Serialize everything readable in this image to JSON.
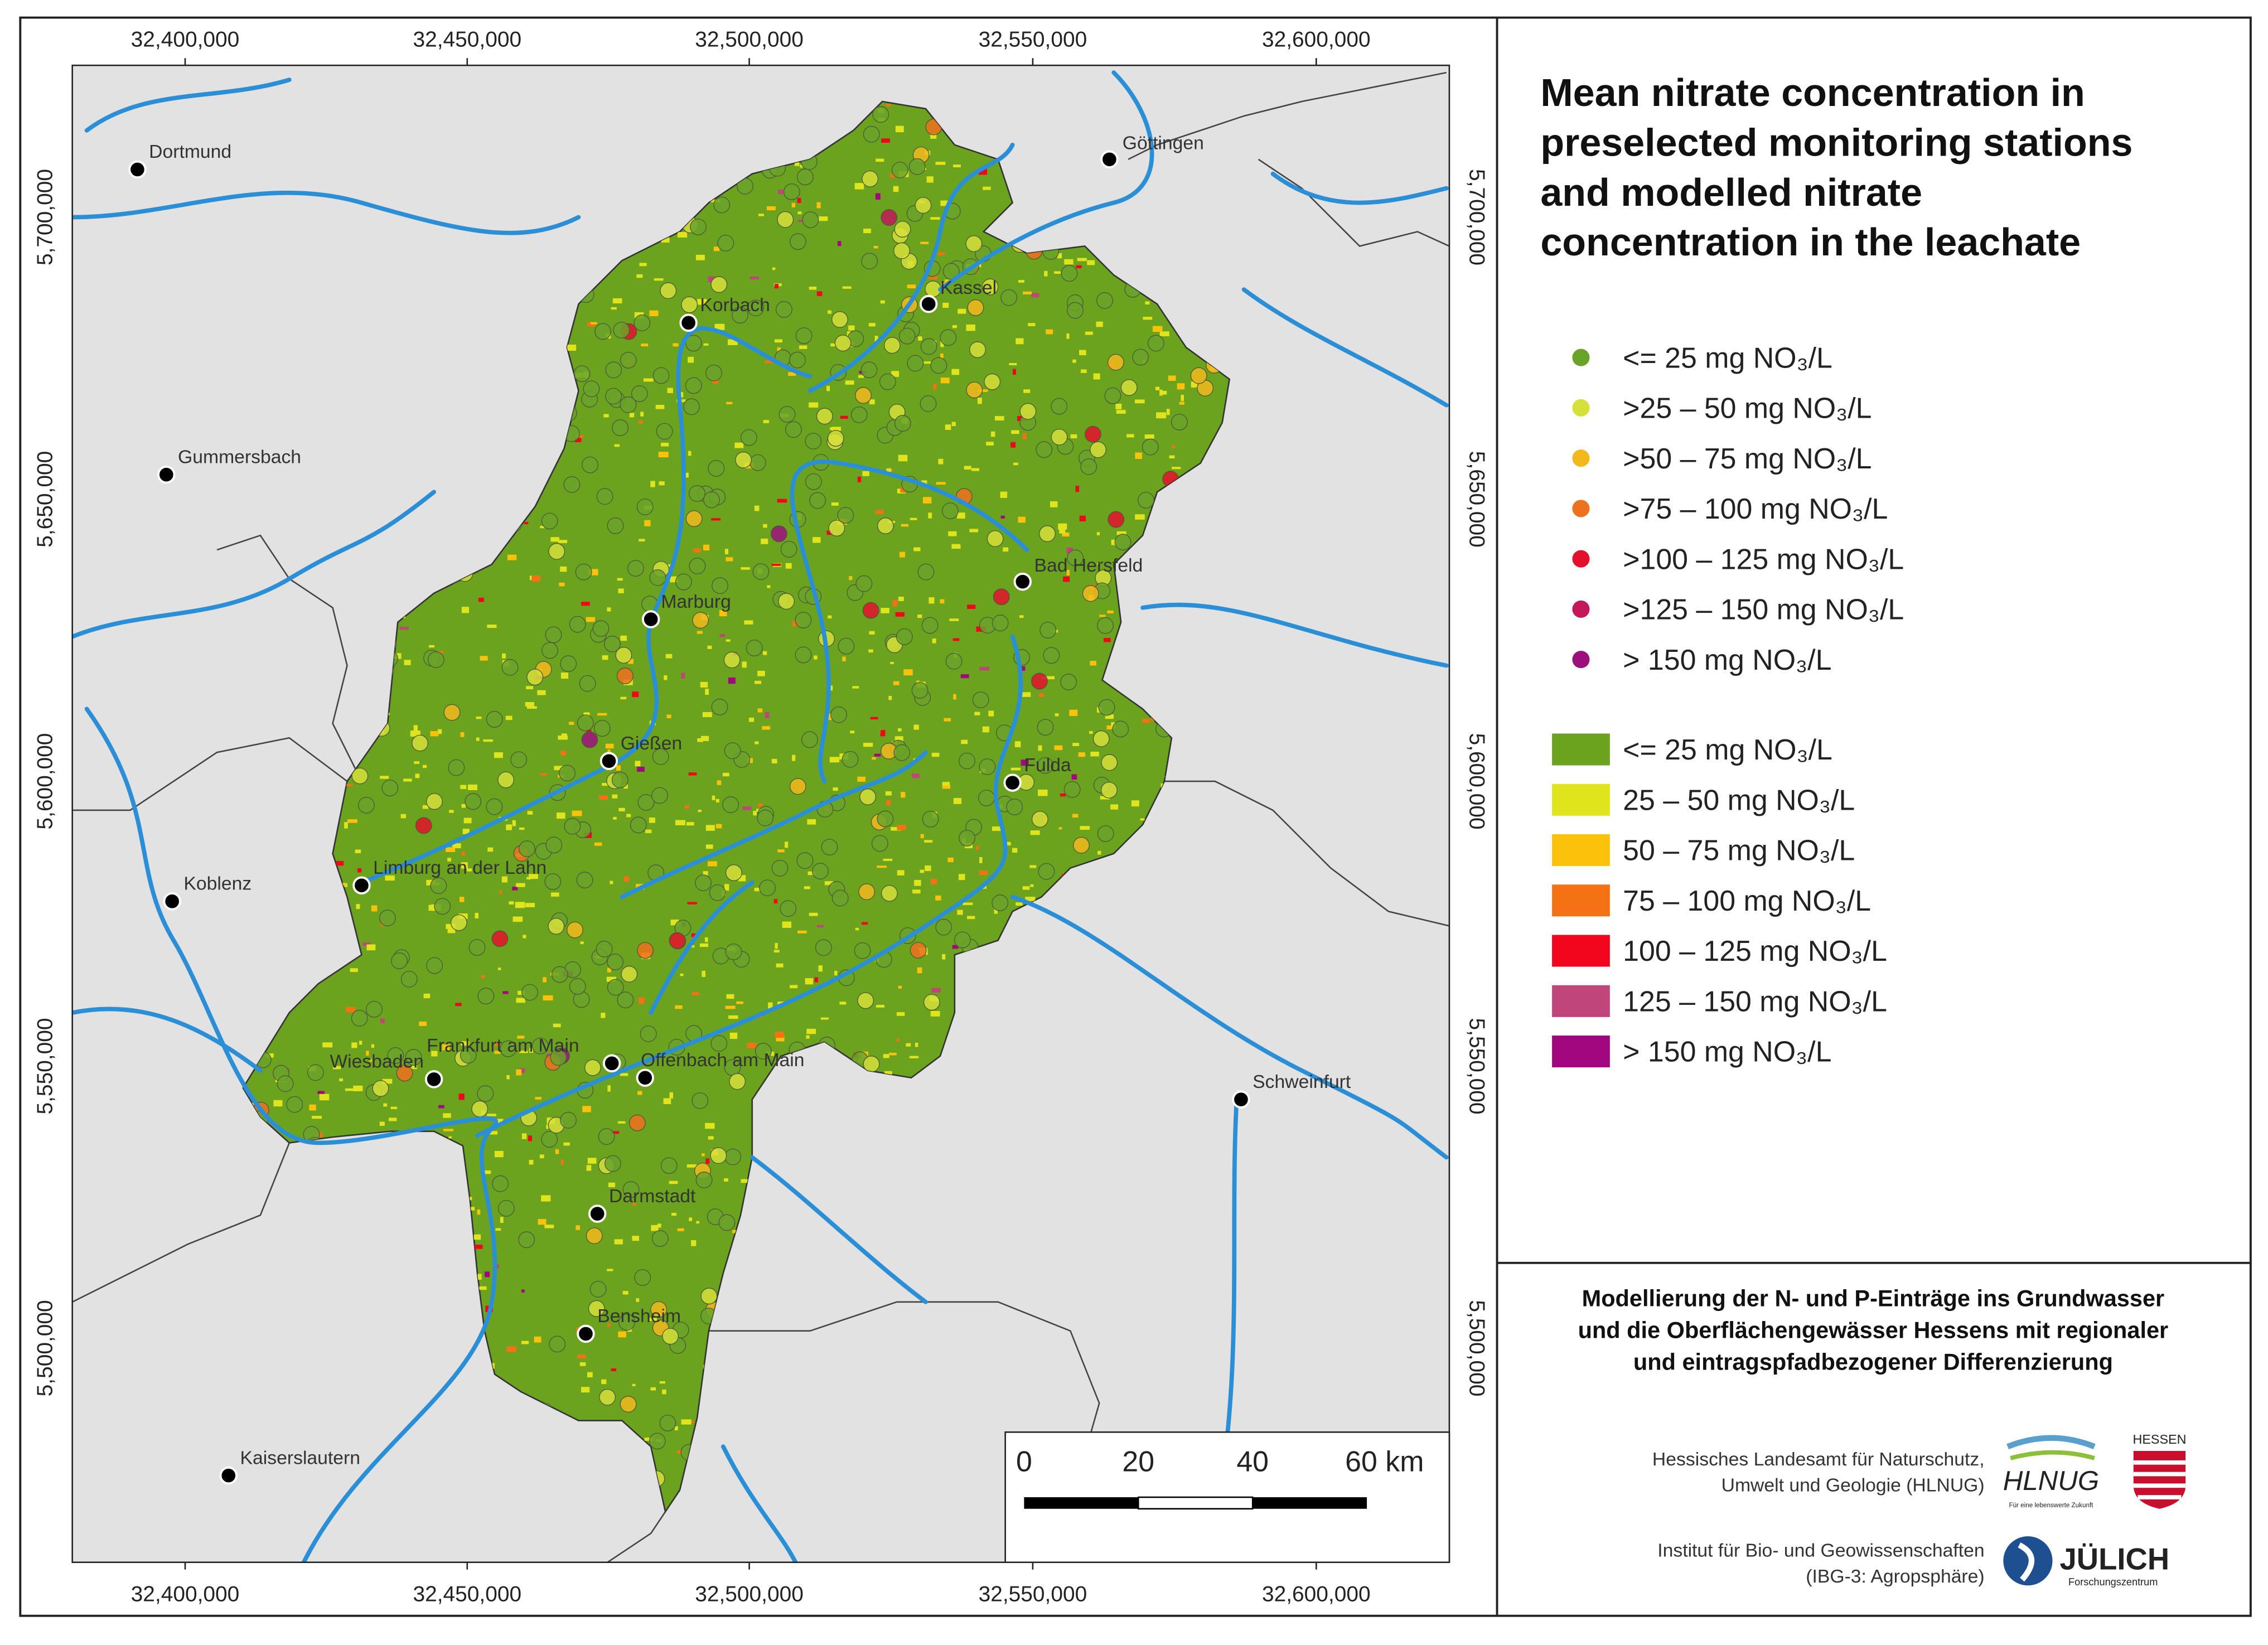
{
  "map": {
    "x_ticks": [
      "32,400,000",
      "32,450,000",
      "32,500,000",
      "32,550,000",
      "32,600,000"
    ],
    "y_ticks": [
      "5,700,000",
      "5,650,000",
      "5,600,000",
      "5,550,000",
      "5,500,000"
    ],
    "cities": [
      "Dortmund",
      "Göttingen",
      "Korbach",
      "Kassel",
      "Gummersbach",
      "Bad Hersfeld",
      "Marburg",
      "Gießen",
      "Fulda",
      "Limburg an der Lahn",
      "Koblenz",
      "Wiesbaden",
      "Frankfurt am Main",
      "Offenbach am Main",
      "Schweinfurt",
      "Darmstadt",
      "Bensheim",
      "Kaiserslautern"
    ],
    "scale_bar": {
      "labels": [
        "0",
        "20",
        "40",
        "60 km"
      ]
    }
  },
  "legend": {
    "title_lines": [
      "Mean nitrate concentration in",
      "preselected monitoring stations",
      "and modelled nitrate",
      "concentration in the leachate"
    ],
    "stations": [
      {
        "label": "<= 25 mg NO₃/L",
        "color": "#6aa329"
      },
      {
        "label": ">25 – 50 mg NO₃/L",
        "color": "#d6e03a"
      },
      {
        "label": ">50 – 75 mg NO₃/L",
        "color": "#f2b81d"
      },
      {
        "label": ">75 – 100 mg NO₃/L",
        "color": "#ee711e"
      },
      {
        "label": ">100 – 125 mg NO₃/L",
        "color": "#e4112d"
      },
      {
        "label": ">125 – 150 mg NO₃/L",
        "color": "#c2185a"
      },
      {
        "label": "> 150 mg NO₃/L",
        "color": "#9c107e"
      }
    ],
    "leachate": [
      {
        "label": "<= 25 mg NO₃/L",
        "color": "#6ba31f"
      },
      {
        "label": "25 – 50 mg NO₃/L",
        "color": "#e0e41c"
      },
      {
        "label": "50 – 75 mg NO₃/L",
        "color": "#fbc10b"
      },
      {
        "label": "75 – 100 mg NO₃/L",
        "color": "#f47214"
      },
      {
        "label": "100 – 125 mg NO₃/L",
        "color": "#f2061e"
      },
      {
        "label": "125 – 150 mg NO₃/L",
        "color": "#c0457a"
      },
      {
        "label": "> 150 mg NO₃/L",
        "color": "#a2077f"
      }
    ]
  },
  "credits": {
    "project_lines": [
      "Modellierung der N- und P-Einträge ins Grundwasser",
      "und die Oberflächengewässer Hessens mit regionaler",
      "und eintragspfadbezogener Differenzierung"
    ],
    "hlnug_lines": [
      "Hessisches Landesamt für Naturschutz,",
      "Umwelt und Geologie (HLNUG)"
    ],
    "hlnug_logo": "HLNUG",
    "hlnug_slogan": "Für eine lebenswerte Zukunft",
    "hessen_logo": "HESSEN",
    "ibg_lines": [
      "Institut für Bio- und Geowissenschaften",
      "(IBG-3: Agropsphäre)"
    ],
    "juelich_logo": "JÜLICH",
    "juelich_sub": "Forschungszentrum"
  }
}
